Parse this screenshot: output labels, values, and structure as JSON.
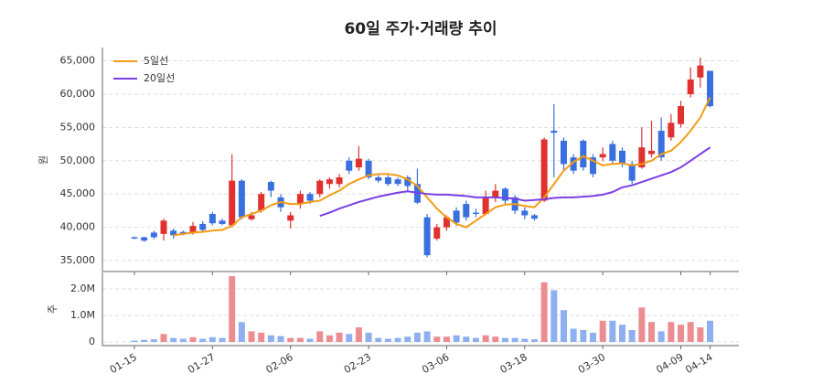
{
  "chart_data": [
    {
      "type": "candlestick",
      "title": "60일 주가·거래량 추이",
      "ylabel": "원",
      "categories": [
        "01-15",
        null,
        null,
        null,
        null,
        null,
        null,
        null,
        "01-27",
        null,
        null,
        null,
        null,
        null,
        null,
        null,
        "02-06",
        null,
        null,
        null,
        null,
        null,
        null,
        null,
        "02-23",
        null,
        null,
        null,
        null,
        null,
        null,
        null,
        "03-06",
        null,
        null,
        null,
        null,
        null,
        null,
        null,
        "03-18",
        null,
        null,
        null,
        null,
        null,
        null,
        null,
        "03-30",
        null,
        null,
        null,
        null,
        null,
        null,
        null,
        "04-09",
        null,
        null,
        "04-14"
      ],
      "open": [
        38500,
        38500,
        39200,
        39000,
        39500,
        39300,
        39200,
        40500,
        42000,
        41000,
        40300,
        47000,
        41200,
        42500,
        46800,
        44500,
        41000,
        43500,
        45000,
        45000,
        46500,
        46500,
        50000,
        49000,
        50000,
        47500,
        47500,
        47200,
        47500,
        46500,
        41500,
        38300,
        40000,
        42500,
        43500,
        42200,
        42000,
        44500,
        45800,
        44500,
        42500,
        41800,
        44000,
        54500,
        53000,
        50500,
        53000,
        50500,
        50500,
        52500,
        51500,
        49500,
        49000,
        51000,
        54500,
        53500,
        55500,
        60000,
        62500,
        63500
      ],
      "high": [
        38600,
        38600,
        39500,
        41300,
        39800,
        39500,
        40800,
        40900,
        42300,
        41300,
        51000,
        47200,
        42300,
        45300,
        47000,
        45000,
        42300,
        45500,
        45300,
        47200,
        47500,
        48000,
        50500,
        52200,
        50300,
        47800,
        47800,
        47500,
        47800,
        48800,
        42000,
        40500,
        41800,
        43000,
        44000,
        42800,
        45500,
        46500,
        46000,
        44800,
        43000,
        42000,
        53500,
        58500,
        53500,
        51000,
        53200,
        51000,
        52000,
        53000,
        52000,
        50000,
        55000,
        56000,
        56500,
        57000,
        59000,
        64000,
        65500,
        63500
      ],
      "low": [
        38200,
        37800,
        38200,
        38000,
        38300,
        38800,
        38900,
        39300,
        40300,
        40300,
        40000,
        41200,
        41000,
        42200,
        44500,
        42300,
        39800,
        42800,
        43500,
        44500,
        45800,
        46000,
        48000,
        48500,
        47200,
        46700,
        46200,
        46200,
        45500,
        43500,
        35500,
        38000,
        39500,
        40200,
        41000,
        41500,
        41800,
        43800,
        43500,
        42000,
        41200,
        41000,
        43800,
        47500,
        48500,
        48000,
        48500,
        47500,
        50000,
        49500,
        49000,
        46500,
        48800,
        50500,
        50000,
        53000,
        55000,
        59500,
        61000,
        58000
      ],
      "close": [
        38300,
        38000,
        38500,
        41000,
        38800,
        39000,
        40200,
        39600,
        40600,
        40500,
        47000,
        41500,
        41800,
        45000,
        45500,
        43000,
        41800,
        45000,
        44000,
        47000,
        47200,
        47500,
        48500,
        50300,
        47500,
        47000,
        46500,
        46500,
        46200,
        43700,
        35800,
        40000,
        41500,
        40700,
        41500,
        42000,
        44500,
        45500,
        44000,
        42500,
        41800,
        41300,
        53200,
        54200,
        49500,
        48500,
        49000,
        48000,
        51000,
        50000,
        49500,
        47000,
        52000,
        51500,
        50500,
        55700,
        58200,
        62200,
        64300,
        58200
      ],
      "up_color": "#e0312f",
      "down_color": "#3a6fe0",
      "series": [
        {
          "name": "5일선",
          "color": "#f39c12",
          "values": [
            null,
            null,
            null,
            null,
            38800,
            39000,
            39200,
            39300,
            39500,
            39600,
            40200,
            41500,
            42000,
            42500,
            43300,
            43800,
            43500,
            43500,
            43800,
            44000,
            44800,
            45500,
            46500,
            47200,
            47800,
            48000,
            48000,
            47800,
            47200,
            46200,
            44500,
            42800,
            41500,
            40500,
            40000,
            41000,
            42000,
            43000,
            43400,
            43500,
            43200,
            43000,
            44500,
            46500,
            48500,
            49800,
            50700,
            50000,
            49300,
            49500,
            49600,
            49300,
            49500,
            50000,
            51000,
            51500,
            52800,
            54500,
            56500,
            59500
          ]
        },
        {
          "name": "20일선",
          "color": "#7b3fe4",
          "values": [
            null,
            null,
            null,
            null,
            null,
            null,
            null,
            null,
            null,
            null,
            null,
            null,
            null,
            null,
            null,
            null,
            null,
            null,
            null,
            41700,
            42200,
            42800,
            43300,
            43800,
            44200,
            44600,
            44900,
            45200,
            45400,
            45200,
            45000,
            44900,
            44900,
            44800,
            44700,
            44500,
            44500,
            44500,
            44400,
            44300,
            44000,
            44100,
            44200,
            44400,
            44500,
            44500,
            44600,
            44700,
            44900,
            45300,
            46000,
            46300,
            46800,
            47300,
            47800,
            48300,
            49000,
            50000,
            51000,
            52000
          ]
        }
      ],
      "ylim": [
        33900,
        67000
      ],
      "yticks": [
        {
          "value": 35000,
          "label": "35,000"
        },
        {
          "value": 40000,
          "label": "40,000"
        },
        {
          "value": 45000,
          "label": "45,000"
        },
        {
          "value": 50000,
          "label": "50,000"
        },
        {
          "value": 55000,
          "label": "55,000"
        },
        {
          "value": 60000,
          "label": "60,000"
        },
        {
          "value": 65000,
          "label": "65,000"
        }
      ],
      "grid": true,
      "legend": "upper left"
    },
    {
      "type": "bar",
      "ylabel": "주",
      "values": [
        50000,
        80000,
        100000,
        300000,
        150000,
        120000,
        180000,
        120000,
        180000,
        150000,
        2480000,
        750000,
        400000,
        350000,
        250000,
        220000,
        150000,
        150000,
        120000,
        400000,
        250000,
        350000,
        300000,
        550000,
        350000,
        150000,
        120000,
        150000,
        200000,
        350000,
        400000,
        200000,
        200000,
        250000,
        200000,
        150000,
        250000,
        200000,
        150000,
        150000,
        120000,
        100000,
        2250000,
        1950000,
        1200000,
        500000,
        450000,
        350000,
        800000,
        800000,
        650000,
        450000,
        1300000,
        750000,
        400000,
        750000,
        650000,
        750000,
        550000,
        800000
      ],
      "up_color": "#ec8d92",
      "down_color": "#8eb0f0",
      "ylim": [
        0,
        2620000
      ],
      "yticks": [
        0,
        {
          "value": 1000000,
          "label": "1.0M"
        },
        {
          "value": 2000000,
          "label": "2.0M"
        }
      ],
      "grid": true
    }
  ]
}
